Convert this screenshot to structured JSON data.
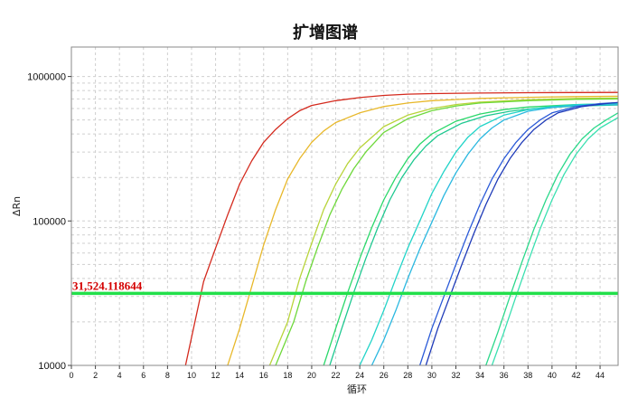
{
  "chart_data": {
    "type": "line",
    "title": "扩增图谱",
    "xlabel": "循环",
    "ylabel": "ΔRn",
    "xlim": [
      0,
      45.5
    ],
    "ylim": [
      10000,
      1600000
    ],
    "yscale": "log",
    "x_ticks": [
      0,
      2,
      4,
      6,
      8,
      10,
      12,
      14,
      16,
      18,
      20,
      22,
      24,
      26,
      28,
      30,
      32,
      34,
      36,
      38,
      40,
      42,
      44
    ],
    "y_ticks": [
      10000,
      100000,
      1000000
    ],
    "y_tick_labels": [
      "10000",
      "100000",
      "1000000"
    ],
    "grid": true,
    "threshold": {
      "value": 31524.118644,
      "label": "31,524.118644",
      "color": "#22e04a"
    },
    "series": [
      {
        "color": "#d42a1e",
        "x": [
          9.5,
          11,
          12,
          13,
          14,
          15,
          16,
          17,
          18,
          19,
          20,
          22,
          24,
          26,
          28,
          30,
          34,
          38,
          42,
          45.5
        ],
        "y": [
          10000,
          38000,
          65000,
          110000,
          180000,
          260000,
          350000,
          430000,
          510000,
          580000,
          630000,
          680000,
          715000,
          740000,
          755000,
          762000,
          768000,
          772000,
          775000,
          776000
        ]
      },
      {
        "color": "#e8b82a",
        "x": [
          13,
          14,
          15,
          16,
          17,
          18,
          19,
          20,
          21,
          22,
          24,
          26,
          28,
          30,
          34,
          38,
          42,
          45.5
        ],
        "y": [
          10000,
          18000,
          35000,
          68000,
          120000,
          195000,
          270000,
          350000,
          420000,
          480000,
          560000,
          620000,
          655000,
          680000,
          705000,
          718000,
          726000,
          730000
        ]
      },
      {
        "color": "#b8d43a",
        "x": [
          16.5,
          18,
          19,
          20,
          21,
          22,
          23,
          24,
          26,
          28,
          30,
          32,
          34,
          38,
          42,
          45.5
        ],
        "y": [
          10000,
          20000,
          40000,
          70000,
          120000,
          180000,
          250000,
          320000,
          450000,
          540000,
          600000,
          640000,
          665000,
          690000,
          705000,
          710000
        ]
      },
      {
        "color": "#6ed83a",
        "x": [
          17,
          18.5,
          19.5,
          20.5,
          21.5,
          22.5,
          23.5,
          24.5,
          26,
          28,
          30,
          32,
          34,
          38,
          42,
          45.5
        ],
        "y": [
          10000,
          20000,
          38000,
          66000,
          110000,
          165000,
          230000,
          300000,
          410000,
          510000,
          580000,
          625000,
          655000,
          680000,
          695000,
          700000
        ]
      },
      {
        "color": "#2ad86a",
        "x": [
          21,
          22,
          23,
          24,
          25,
          26,
          27,
          28,
          29,
          30,
          32,
          34,
          36,
          38,
          42,
          45.5
        ],
        "y": [
          10000,
          18000,
          32000,
          55000,
          90000,
          140000,
          200000,
          270000,
          340000,
          400000,
          490000,
          550000,
          590000,
          615000,
          640000,
          650000
        ]
      },
      {
        "color": "#1ec890",
        "x": [
          21.5,
          22.5,
          23.5,
          24.5,
          25.5,
          26.5,
          27.5,
          28.5,
          29.5,
          30.5,
          32.5,
          34.5,
          36.5,
          38.5,
          42,
          45.5
        ],
        "y": [
          10000,
          18000,
          32000,
          55000,
          90000,
          140000,
          200000,
          265000,
          330000,
          390000,
          475000,
          535000,
          575000,
          600000,
          625000,
          635000
        ]
      },
      {
        "color": "#22d4c8",
        "x": [
          24,
          25,
          26,
          27,
          28,
          29,
          30,
          31,
          32,
          33,
          34,
          36,
          38,
          40,
          42,
          45.5
        ],
        "y": [
          10000,
          15000,
          24000,
          40000,
          65000,
          100000,
          155000,
          220000,
          300000,
          380000,
          450000,
          540000,
          590000,
          620000,
          640000,
          650000
        ]
      },
      {
        "color": "#2ab8e0",
        "x": [
          25,
          26,
          27,
          28,
          29,
          30,
          31,
          32,
          33,
          34,
          35,
          36,
          38,
          40,
          42,
          45.5
        ],
        "y": [
          10000,
          15000,
          24000,
          40000,
          64000,
          98000,
          150000,
          215000,
          290000,
          370000,
          440000,
          500000,
          575000,
          610000,
          630000,
          640000
        ]
      },
      {
        "color": "#2a5ad8",
        "x": [
          29,
          30,
          31,
          32,
          33,
          34,
          35,
          36,
          37,
          38,
          39,
          40,
          42,
          44,
          45.5
        ],
        "y": [
          10000,
          18000,
          30000,
          50000,
          82000,
          130000,
          195000,
          270000,
          350000,
          430000,
          500000,
          560000,
          620000,
          650000,
          660000
        ]
      },
      {
        "color": "#1e3ab8",
        "x": [
          29.5,
          30.5,
          31.5,
          32.5,
          33.5,
          34.5,
          35.5,
          36.5,
          37.5,
          38.5,
          39.5,
          40.5,
          42.5,
          44.5,
          45.5
        ],
        "y": [
          10000,
          18000,
          30000,
          50000,
          82000,
          130000,
          195000,
          270000,
          350000,
          430000,
          500000,
          560000,
          620000,
          650000,
          660000
        ]
      },
      {
        "color": "#2ad88a",
        "x": [
          34.5,
          35.5,
          36.5,
          37.5,
          38.5,
          39.5,
          40.5,
          41.5,
          42.5,
          43.5,
          44.5,
          45.5
        ],
        "y": [
          10000,
          17000,
          30000,
          52000,
          88000,
          140000,
          210000,
          290000,
          370000,
          440000,
          500000,
          560000
        ]
      },
      {
        "color": "#3ae0b0",
        "x": [
          35,
          36,
          37,
          38,
          39,
          40,
          41,
          42,
          43,
          44,
          45.5
        ],
        "y": [
          10000,
          17000,
          30000,
          52000,
          88000,
          140000,
          210000,
          290000,
          370000,
          440000,
          520000
        ]
      }
    ]
  }
}
